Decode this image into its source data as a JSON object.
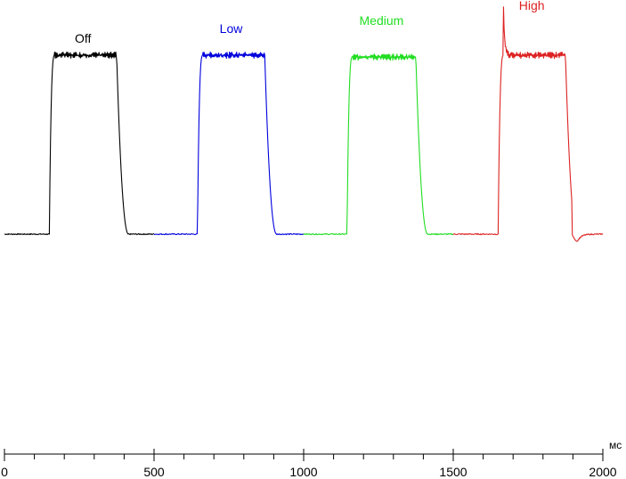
{
  "chart_data": {
    "type": "line",
    "title": "",
    "xlabel": "",
    "x_unit": "мс",
    "ylabel": "",
    "xlim": [
      0,
      2000
    ],
    "ylim": [
      0,
      1
    ],
    "x_ticks": [
      0,
      500,
      1000,
      1500,
      2000
    ],
    "x_minor_step": 100,
    "grid": false,
    "legend": "none",
    "series": [
      {
        "name": "Off",
        "color": "#000000",
        "x_range": [
          0,
          500
        ],
        "rise_ms": 150,
        "fall_ms": 375,
        "low_level": 0,
        "high_level": 0.99,
        "overshoot_peak": null,
        "undershoot": null,
        "label": "Off"
      },
      {
        "name": "Low",
        "color": "#0000dd",
        "x_range": [
          500,
          1000
        ],
        "rise_ms": 645,
        "fall_ms": 870,
        "low_level": 0,
        "high_level": 0.99,
        "overshoot_peak": null,
        "undershoot": null,
        "label": "Low"
      },
      {
        "name": "Medium",
        "color": "#22dd22",
        "x_range": [
          1000,
          1500
        ],
        "rise_ms": 1145,
        "fall_ms": 1375,
        "low_level": 0,
        "high_level": 0.98,
        "overshoot_peak": null,
        "undershoot": null,
        "label": "Medium"
      },
      {
        "name": "High",
        "color": "#dd2222",
        "x_range": [
          1500,
          2000
        ],
        "rise_ms": 1650,
        "fall_ms": 1875,
        "low_level": 0,
        "high_level": 0.99,
        "overshoot_peak": 1.24,
        "undershoot": -0.04,
        "label": "High"
      }
    ]
  }
}
